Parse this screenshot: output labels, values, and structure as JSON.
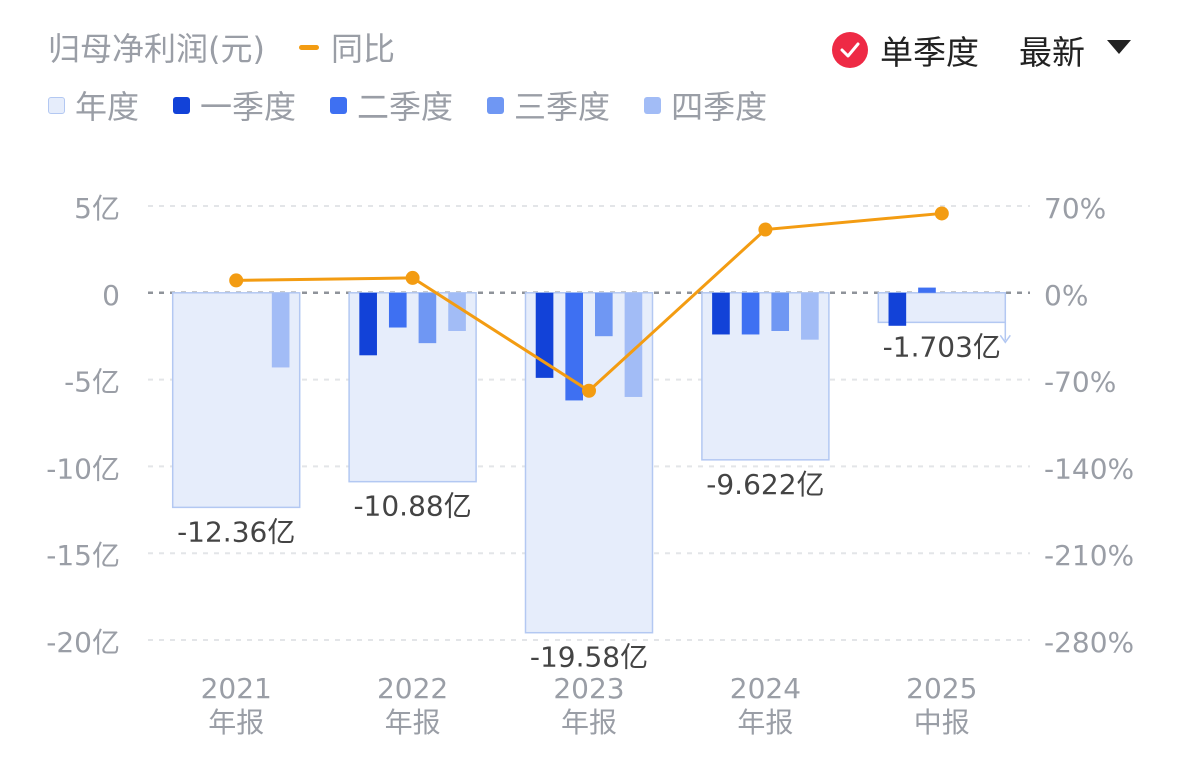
{
  "legend": {
    "title": "归母净利润(元)",
    "line_label": "同比",
    "annual": "年度",
    "q1": "一季度",
    "q2": "二季度",
    "q3": "三季度",
    "q4": "四季度"
  },
  "controls": {
    "mode_label": "单季度",
    "sort_label": "最新"
  },
  "colors": {
    "annual_fill": "#e6edfb",
    "annual_border": "#b3c8f2",
    "q1": "#1242d8",
    "q2": "#3e70f2",
    "q3": "#6f97f3",
    "q4": "#a2bcf6",
    "line": "#f39c12",
    "check": "#ee2a45",
    "axis_text": "#9a9ea6",
    "label_text": "#444444"
  },
  "chart_data": {
    "type": "bar",
    "categories": [
      [
        "2021",
        "年报"
      ],
      [
        "2022",
        "年报"
      ],
      [
        "2023",
        "年报"
      ],
      [
        "2024",
        "年报"
      ],
      [
        "2025",
        "中报"
      ]
    ],
    "y_left": {
      "ticks": [
        5,
        0,
        -5,
        -10,
        -15,
        -20
      ],
      "labels": [
        "5亿",
        "0",
        "-5亿",
        "-10亿",
        "-15亿",
        "-20亿"
      ],
      "range": [
        -20,
        5
      ]
    },
    "y_right": {
      "ticks": [
        70,
        0,
        -70,
        -140,
        -210,
        -280
      ],
      "labels": [
        "70%",
        "0%",
        "-70%",
        "-140%",
        "-210%",
        "-280%"
      ],
      "range": [
        -280,
        70
      ]
    },
    "annual": {
      "values": [
        -12.36,
        -10.88,
        -19.58,
        -9.622,
        -1.703
      ],
      "labels": [
        "-12.36亿",
        "-10.88亿",
        "-19.58亿",
        "-9.622亿",
        "-1.703亿"
      ]
    },
    "quarterly": [
      [
        null,
        null,
        null,
        -4.3
      ],
      [
        -3.6,
        -2.0,
        -2.9,
        -2.2
      ],
      [
        -4.9,
        -6.2,
        -2.5,
        -6.0
      ],
      [
        -2.4,
        -2.4,
        -2.2,
        -2.7
      ],
      [
        -1.9,
        0.3,
        null,
        null
      ]
    ],
    "yoy": {
      "name": "同比",
      "values": [
        10,
        12,
        -79,
        51,
        64
      ]
    }
  }
}
